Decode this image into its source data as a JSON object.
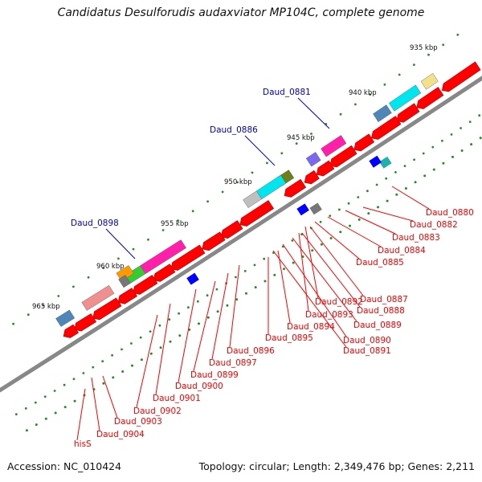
{
  "title": "Candidatus Desulforudis audaxviator MP104C, complete genome",
  "footer": {
    "accession": "Accession: NC_010424",
    "summary": "Topology: circular; Length: 2,349,476 bp; Genes: 2,211"
  },
  "colors": {
    "backbone": "#888888",
    "tick": "#2a8a2a",
    "gene_red": "#ff0000",
    "label_red": "#ff0000",
    "label_blue": "#0000cc",
    "salmon": "#f08f8f",
    "steel_blue": "#4f86b8",
    "cyan": "#00e5ee",
    "magenta": "#ff1fa8",
    "gray": "#777777",
    "light_gray": "#bfbfbf",
    "olive": "#6b7f1a",
    "green": "#33cc33",
    "orange": "#ff9900",
    "khaki": "#f2e08a",
    "slate": "#7b68ee",
    "teal": "#20b2aa",
    "blue": "#0000ff"
  },
  "scale_labels": [
    {
      "kbp": 935,
      "text": "935 kbp"
    },
    {
      "kbp": 940,
      "text": "940 kbp"
    },
    {
      "kbp": 945,
      "text": "945 kbp"
    },
    {
      "kbp": 950,
      "text": "950 kbp"
    },
    {
      "kbp": 955,
      "text": "955 kbp"
    },
    {
      "kbp": 960,
      "text": "960 kbp"
    },
    {
      "kbp": 965,
      "text": "965 kbp"
    }
  ],
  "red_labels": [
    "Daud_0880",
    "Daud_0882",
    "Daud_0883",
    "Daud_0884",
    "Daud_0885",
    "Daud_0887",
    "Daud_0888",
    "Daud_0889",
    "Daud_0890",
    "Daud_0891",
    "Daud_0892",
    "Daud_0893",
    "Daud_0894",
    "Daud_0895",
    "Daud_0896",
    "Daud_0897",
    "Daud_0899",
    "Daud_0900",
    "Daud_0901",
    "Daud_0902",
    "Daud_0903",
    "Daud_0904",
    "hisS"
  ],
  "blue_labels": [
    "Daud_0881",
    "Daud_0886",
    "Daud_0898"
  ]
}
